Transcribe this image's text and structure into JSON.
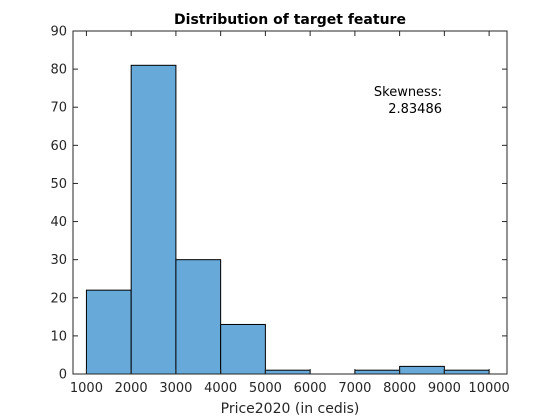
{
  "chart_data": {
    "type": "bar",
    "subtype": "histogram",
    "title": "Distribution of target feature",
    "xlabel": "Price2020 (in cedis)",
    "ylabel": "",
    "bin_edges": [
      1000,
      2000,
      3000,
      4000,
      5000,
      6000,
      7000,
      8000,
      9000,
      10000
    ],
    "values": [
      22,
      81,
      30,
      13,
      1,
      0,
      1,
      2,
      1
    ],
    "xlim": [
      700,
      10400
    ],
    "ylim": [
      0,
      90
    ],
    "xticks": [
      "1000",
      "2000",
      "3000",
      "4000",
      "5000",
      "6000",
      "7000",
      "8000",
      "9000",
      "10000"
    ],
    "yticks": [
      "0",
      "10",
      "20",
      "30",
      "40",
      "50",
      "60",
      "70",
      "80",
      "90"
    ],
    "grid": false,
    "legend": "none",
    "bar_color": "#67a9d8",
    "edge_color": "#000000",
    "annotation": {
      "line1": "Skewness:",
      "line2": "2.83486"
    }
  }
}
